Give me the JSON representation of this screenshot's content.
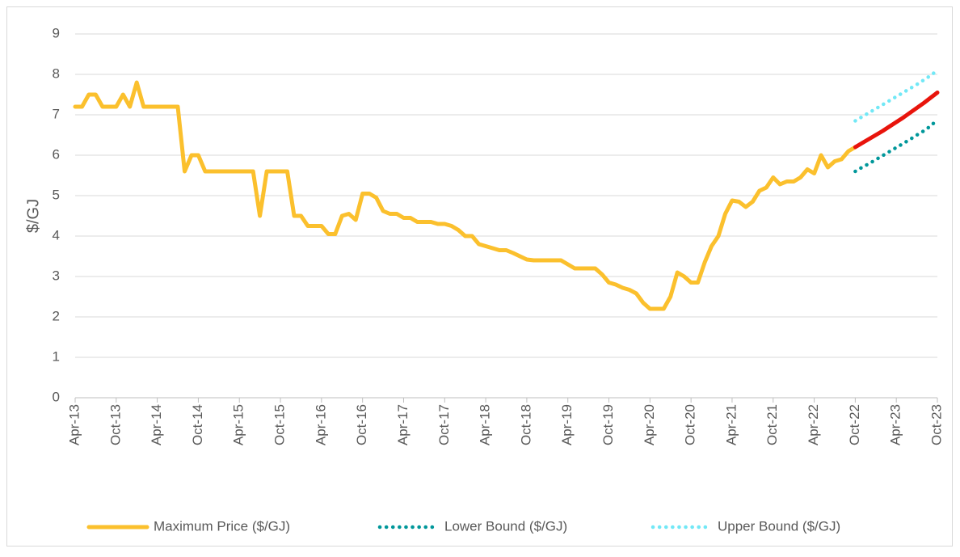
{
  "chart_data": {
    "type": "line",
    "y_label": "$/GJ",
    "categories": [
      "Apr-13",
      null,
      null,
      null,
      null,
      null,
      "Oct-13",
      null,
      null,
      null,
      null,
      null,
      "Apr-14",
      null,
      null,
      null,
      null,
      null,
      "Oct-14",
      null,
      null,
      null,
      null,
      null,
      "Apr-15",
      null,
      null,
      null,
      null,
      null,
      "Oct-15",
      null,
      null,
      null,
      null,
      null,
      "Apr-16",
      null,
      null,
      null,
      null,
      null,
      "Oct-16",
      null,
      null,
      null,
      null,
      null,
      "Apr-17",
      null,
      null,
      null,
      null,
      null,
      "Oct-17",
      null,
      null,
      null,
      null,
      null,
      "Apr-18",
      null,
      null,
      null,
      null,
      null,
      "Oct-18",
      null,
      null,
      null,
      null,
      null,
      "Apr-19",
      null,
      null,
      null,
      null,
      null,
      "Oct-19",
      null,
      null,
      null,
      null,
      null,
      "Apr-20",
      null,
      null,
      null,
      null,
      null,
      "Oct-20",
      null,
      null,
      null,
      null,
      null,
      "Apr-21",
      null,
      null,
      null,
      null,
      null,
      "Oct-21",
      null,
      null,
      null,
      null,
      null,
      "Apr-22",
      null,
      null,
      null,
      null,
      null,
      "Oct-22",
      null,
      null,
      null,
      null,
      null,
      "Apr-23",
      null,
      null,
      null,
      null,
      null,
      "Oct-23"
    ],
    "series": [
      {
        "name": "Maximum Price ($/GJ)",
        "color": "#fbc02d",
        "style": "solid",
        "values": [
          7.2,
          7.2,
          7.5,
          7.5,
          7.2,
          7.2,
          7.2,
          7.5,
          7.2,
          7.8,
          7.2,
          7.2,
          7.2,
          7.2,
          7.2,
          7.2,
          5.6,
          6.0,
          6.0,
          5.6,
          5.6,
          5.6,
          5.6,
          5.6,
          5.6,
          5.6,
          5.6,
          4.5,
          5.6,
          5.6,
          5.6,
          5.6,
          4.5,
          4.5,
          4.25,
          4.25,
          4.25,
          4.05,
          4.05,
          4.5,
          4.55,
          4.4,
          5.05,
          5.05,
          4.95,
          4.62,
          4.55,
          4.55,
          4.45,
          4.45,
          4.35,
          4.35,
          4.35,
          4.3,
          4.3,
          4.25,
          4.15,
          4.0,
          4.0,
          3.8,
          3.75,
          3.7,
          3.65,
          3.65,
          3.58,
          3.5,
          3.42,
          3.4,
          3.4,
          3.4,
          3.4,
          3.4,
          3.3,
          3.2,
          3.2,
          3.2,
          3.2,
          3.05,
          2.85,
          2.8,
          2.72,
          2.67,
          2.58,
          2.35,
          2.2,
          2.2,
          2.2,
          2.5,
          3.1,
          3.0,
          2.85,
          2.85,
          3.35,
          3.75,
          4.0,
          4.55,
          4.88,
          4.85,
          4.72,
          4.85,
          5.12,
          5.2,
          5.45,
          5.28,
          5.35,
          5.35,
          5.45,
          5.65,
          5.55,
          6.0,
          5.7,
          5.85,
          5.9,
          6.1,
          6.2,
          null,
          null,
          null,
          null,
          null,
          null,
          null,
          null,
          null,
          null,
          null,
          null
        ]
      },
      {
        "color": "#e8140c",
        "style": "solid",
        "values": [
          null,
          null,
          null,
          null,
          null,
          null,
          null,
          null,
          null,
          null,
          null,
          null,
          null,
          null,
          null,
          null,
          null,
          null,
          null,
          null,
          null,
          null,
          null,
          null,
          null,
          null,
          null,
          null,
          null,
          null,
          null,
          null,
          null,
          null,
          null,
          null,
          null,
          null,
          null,
          null,
          null,
          null,
          null,
          null,
          null,
          null,
          null,
          null,
          null,
          null,
          null,
          null,
          null,
          null,
          null,
          null,
          null,
          null,
          null,
          null,
          null,
          null,
          null,
          null,
          null,
          null,
          null,
          null,
          null,
          null,
          null,
          null,
          null,
          null,
          null,
          null,
          null,
          null,
          null,
          null,
          null,
          null,
          null,
          null,
          null,
          null,
          null,
          null,
          null,
          null,
          null,
          null,
          null,
          null,
          null,
          null,
          null,
          null,
          null,
          null,
          null,
          null,
          null,
          null,
          null,
          null,
          null,
          null,
          null,
          null,
          null,
          null,
          null,
          null,
          6.2,
          6.3,
          6.4,
          6.5,
          6.6,
          6.71,
          6.82,
          6.93,
          7.05,
          7.17,
          7.29,
          7.42,
          7.55
        ]
      },
      {
        "name": "Lower Bound ($/GJ)",
        "color": "#00979a",
        "style": "dotted",
        "values": [
          null,
          null,
          null,
          null,
          null,
          null,
          null,
          null,
          null,
          null,
          null,
          null,
          null,
          null,
          null,
          null,
          null,
          null,
          null,
          null,
          null,
          null,
          null,
          null,
          null,
          null,
          null,
          null,
          null,
          null,
          null,
          null,
          null,
          null,
          null,
          null,
          null,
          null,
          null,
          null,
          null,
          null,
          null,
          null,
          null,
          null,
          null,
          null,
          null,
          null,
          null,
          null,
          null,
          null,
          null,
          null,
          null,
          null,
          null,
          null,
          null,
          null,
          null,
          null,
          null,
          null,
          null,
          null,
          null,
          null,
          null,
          null,
          null,
          null,
          null,
          null,
          null,
          null,
          null,
          null,
          null,
          null,
          null,
          null,
          null,
          null,
          null,
          null,
          null,
          null,
          null,
          null,
          null,
          null,
          null,
          null,
          null,
          null,
          null,
          null,
          null,
          null,
          null,
          null,
          null,
          null,
          null,
          null,
          null,
          null,
          null,
          null,
          null,
          null,
          5.6,
          5.7,
          5.79,
          5.89,
          5.99,
          6.09,
          6.19,
          6.29,
          6.39,
          6.5,
          6.6,
          6.72,
          6.88
        ]
      },
      {
        "name": "Upper Bound ($/GJ)",
        "color": "#72e8f6",
        "style": "dotted",
        "values": [
          null,
          null,
          null,
          null,
          null,
          null,
          null,
          null,
          null,
          null,
          null,
          null,
          null,
          null,
          null,
          null,
          null,
          null,
          null,
          null,
          null,
          null,
          null,
          null,
          null,
          null,
          null,
          null,
          null,
          null,
          null,
          null,
          null,
          null,
          null,
          null,
          null,
          null,
          null,
          null,
          null,
          null,
          null,
          null,
          null,
          null,
          null,
          null,
          null,
          null,
          null,
          null,
          null,
          null,
          null,
          null,
          null,
          null,
          null,
          null,
          null,
          null,
          null,
          null,
          null,
          null,
          null,
          null,
          null,
          null,
          null,
          null,
          null,
          null,
          null,
          null,
          null,
          null,
          null,
          null,
          null,
          null,
          null,
          null,
          null,
          null,
          null,
          null,
          null,
          null,
          null,
          null,
          null,
          null,
          null,
          null,
          null,
          null,
          null,
          null,
          null,
          null,
          null,
          null,
          null,
          null,
          null,
          null,
          null,
          null,
          null,
          null,
          null,
          null,
          6.85,
          6.95,
          7.05,
          7.15,
          7.25,
          7.35,
          7.45,
          7.55,
          7.65,
          7.75,
          7.86,
          7.97,
          8.1
        ]
      }
    ],
    "ylim": [
      0,
      9
    ],
    "yticks": [
      0,
      1,
      2,
      3,
      4,
      5,
      6,
      7,
      8,
      9
    ],
    "grid": true,
    "legend": "bottom"
  }
}
